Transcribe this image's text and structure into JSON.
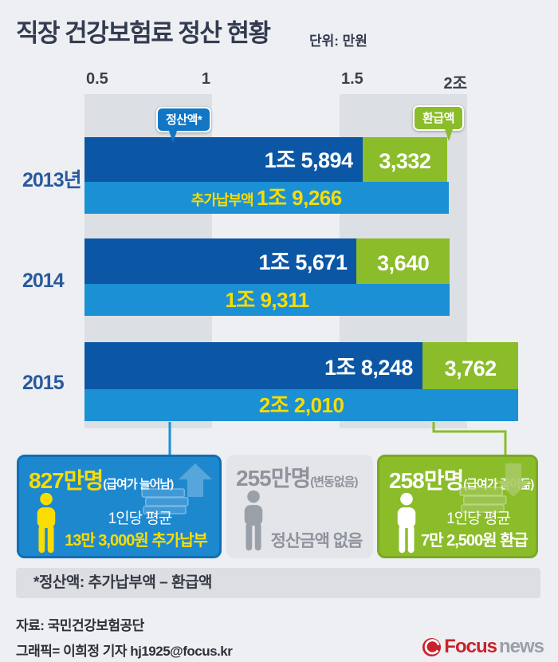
{
  "title": "직장 건강보험료 정산 현황",
  "unit_label": "단위: 만원",
  "legend": {
    "settlement": "정산액*",
    "refund": "환급액",
    "extra_prefix": "추가납부액"
  },
  "chart_data": {
    "type": "bar",
    "orientation": "horizontal-stacked",
    "title": "직장 건강보험료 정산 현황",
    "unit": "만원 (1조 = 10,000)",
    "categories": [
      "2013년",
      "2014",
      "2015"
    ],
    "axis": {
      "min": 5000,
      "ticks": [
        {
          "value": 5000,
          "label": "0.5"
        },
        {
          "value": 10000,
          "label": "1"
        },
        {
          "value": 15000,
          "label": "1.5"
        },
        {
          "value": 20000,
          "label": "2조"
        }
      ]
    },
    "series": [
      {
        "name": "정산액",
        "color": "#0b57a5",
        "values": [
          15894,
          15671,
          18248
        ],
        "labels": [
          "1조 5,894",
          "1조 5,671",
          "1조 8,248"
        ]
      },
      {
        "name": "환급액",
        "color": "#8bbc2a",
        "values": [
          3332,
          3640,
          3762
        ],
        "labels": [
          "3,332",
          "3,640",
          "3,762"
        ]
      },
      {
        "name": "추가납부액",
        "color": "#1b90d5",
        "values": [
          19266,
          19311,
          22010
        ],
        "labels": [
          "1조 9,266",
          "1조 9,311",
          "2조 2,010"
        ]
      }
    ]
  },
  "cards": [
    {
      "headline": "827만명",
      "qualifier": "(급여가 늘어남)",
      "line1": "1인당 평균",
      "line2": "13만 3,000원 추가납부"
    },
    {
      "headline": "255만명",
      "qualifier": "(변동없음)",
      "line2": "정산금액 없음"
    },
    {
      "headline": "258만명",
      "qualifier": "(급여가 줄어듦)",
      "line1": "1인당 평균",
      "line2": "7만 2,500원 환급"
    }
  ],
  "footnote": "*정산액: 추가납부액 – 환급액",
  "source": "자료: 국민건강보험공단",
  "credit": "그래픽= 이희정 기자 hj1925@focus.kr",
  "logo": {
    "part1": "Focus",
    "part2": "news"
  },
  "colors": {
    "dark_blue": "#0b57a5",
    "light_blue": "#1b90d5",
    "green": "#8bbc2a",
    "yellow": "#f9dc00",
    "logo_red": "#c8232b",
    "background": "#edeff3"
  }
}
